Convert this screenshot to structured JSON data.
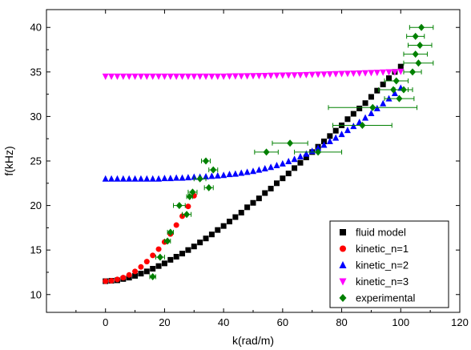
{
  "chart_data": {
    "type": "scatter",
    "xlabel": "k(rad/m)",
    "ylabel": "f(kHz)",
    "xlim": [
      -20,
      120
    ],
    "ylim": [
      8,
      42
    ],
    "xticks": [
      "0",
      "20",
      "40",
      "60",
      "80",
      "100",
      "120"
    ],
    "yticks": [
      "10",
      "15",
      "20",
      "25",
      "30",
      "35",
      "40"
    ],
    "grid": false,
    "legend_position": "bottom-right",
    "series": [
      {
        "name": "fluid model",
        "marker": "square",
        "color": "#000000",
        "x": [
          0,
          2,
          4,
          6,
          8,
          10,
          12,
          14,
          16,
          18,
          20,
          22,
          24,
          26,
          28,
          30,
          32,
          34,
          36,
          38,
          40,
          42,
          44,
          46,
          48,
          50,
          52,
          54,
          56,
          58,
          60,
          62,
          64,
          66,
          68,
          70,
          72,
          74,
          76,
          78,
          80,
          82,
          84,
          86,
          88,
          90,
          92,
          94,
          96,
          98,
          100
        ],
        "y": [
          11.5,
          11.55,
          11.6,
          11.75,
          11.9,
          12.1,
          12.35,
          12.6,
          12.9,
          13.2,
          13.5,
          13.9,
          14.25,
          14.6,
          15.0,
          15.4,
          15.85,
          16.3,
          16.75,
          17.25,
          17.7,
          18.2,
          18.7,
          19.2,
          19.8,
          20.3,
          20.8,
          21.4,
          21.9,
          22.5,
          23.05,
          23.6,
          24.2,
          24.8,
          25.4,
          26.0,
          26.6,
          27.2,
          27.8,
          28.4,
          29.0,
          29.7,
          30.3,
          30.9,
          31.5,
          32.2,
          32.9,
          33.6,
          34.3,
          35.0,
          35.6
        ]
      },
      {
        "name": "kinetic_n=1",
        "marker": "circle",
        "color": "#ff0000",
        "x": [
          0,
          2,
          4,
          6,
          8,
          10,
          12,
          14,
          16,
          18,
          20,
          22,
          24,
          26,
          28,
          30
        ],
        "y": [
          11.5,
          11.55,
          11.7,
          11.9,
          12.2,
          12.6,
          13.1,
          13.7,
          14.4,
          15.1,
          15.9,
          16.8,
          17.8,
          18.8,
          19.9,
          21.1
        ]
      },
      {
        "name": "kinetic_n=2",
        "marker": "triangle-up",
        "color": "#0000ff",
        "x": [
          0,
          2,
          4,
          6,
          8,
          10,
          12,
          14,
          16,
          18,
          20,
          22,
          24,
          26,
          28,
          30,
          32,
          34,
          36,
          38,
          40,
          42,
          44,
          46,
          48,
          50,
          52,
          54,
          56,
          58,
          60,
          62,
          64,
          66,
          68,
          70,
          72,
          74,
          76,
          78,
          80,
          82,
          84,
          86,
          88,
          90,
          92,
          94,
          96,
          98,
          100
        ],
        "y": [
          23.0,
          23.0,
          23.0,
          23.0,
          23.0,
          23.0,
          23.0,
          23.0,
          23.0,
          23.0,
          23.05,
          23.05,
          23.1,
          23.1,
          23.15,
          23.2,
          23.2,
          23.25,
          23.3,
          23.35,
          23.4,
          23.5,
          23.55,
          23.65,
          23.75,
          23.85,
          24.0,
          24.15,
          24.3,
          24.5,
          24.7,
          24.95,
          25.2,
          25.5,
          25.8,
          26.1,
          26.45,
          26.8,
          27.2,
          27.6,
          28.0,
          28.45,
          28.9,
          29.35,
          29.85,
          30.35,
          30.9,
          31.45,
          32.0,
          32.6,
          33.2
        ]
      },
      {
        "name": "kinetic_n=3",
        "marker": "triangle-down",
        "color": "#ff00ff",
        "x": [
          0,
          2,
          4,
          6,
          8,
          10,
          12,
          14,
          16,
          18,
          20,
          22,
          24,
          26,
          28,
          30,
          32,
          34,
          36,
          38,
          40,
          42,
          44,
          46,
          48,
          50,
          52,
          54,
          56,
          58,
          60,
          62,
          64,
          66,
          68,
          70,
          72,
          74,
          76,
          78,
          80,
          82,
          84,
          86,
          88,
          90,
          92,
          94,
          96,
          98,
          100
        ],
        "y": [
          34.5,
          34.5,
          34.5,
          34.5,
          34.5,
          34.5,
          34.5,
          34.5,
          34.5,
          34.5,
          34.5,
          34.5,
          34.5,
          34.5,
          34.5,
          34.5,
          34.5,
          34.5,
          34.5,
          34.5,
          34.5,
          34.52,
          34.53,
          34.54,
          34.55,
          34.56,
          34.57,
          34.58,
          34.6,
          34.61,
          34.62,
          34.63,
          34.65,
          34.66,
          34.68,
          34.7,
          34.72,
          34.74,
          34.76,
          34.78,
          34.8,
          34.82,
          34.84,
          34.86,
          34.88,
          34.9,
          34.93,
          34.96,
          34.98,
          35.0,
          35.05
        ]
      },
      {
        "name": "experimental",
        "marker": "diamond",
        "color": "#008000",
        "x": [
          16,
          18.5,
          21,
          22,
          25,
          27.5,
          28.5,
          29.5,
          32,
          34,
          35,
          36.5,
          54.5,
          62.5,
          72,
          87,
          90.5,
          97.5,
          98.5,
          99.5,
          101,
          104,
          105,
          105,
          106,
          106.5,
          107
        ],
        "y": [
          12,
          14.2,
          16,
          17,
          20,
          19,
          21,
          21.5,
          23,
          25,
          22,
          24,
          26,
          27,
          26,
          29,
          31,
          33,
          34,
          32,
          33,
          35,
          37,
          39,
          36,
          38,
          40
        ],
        "xerr": [
          1,
          1.5,
          1,
          1,
          2,
          1.5,
          1,
          1.5,
          2,
          1.5,
          1.5,
          1.5,
          4,
          6,
          8,
          10,
          15,
          5,
          4,
          5,
          3,
          3,
          4,
          3,
          5,
          4,
          4
        ]
      }
    ]
  }
}
